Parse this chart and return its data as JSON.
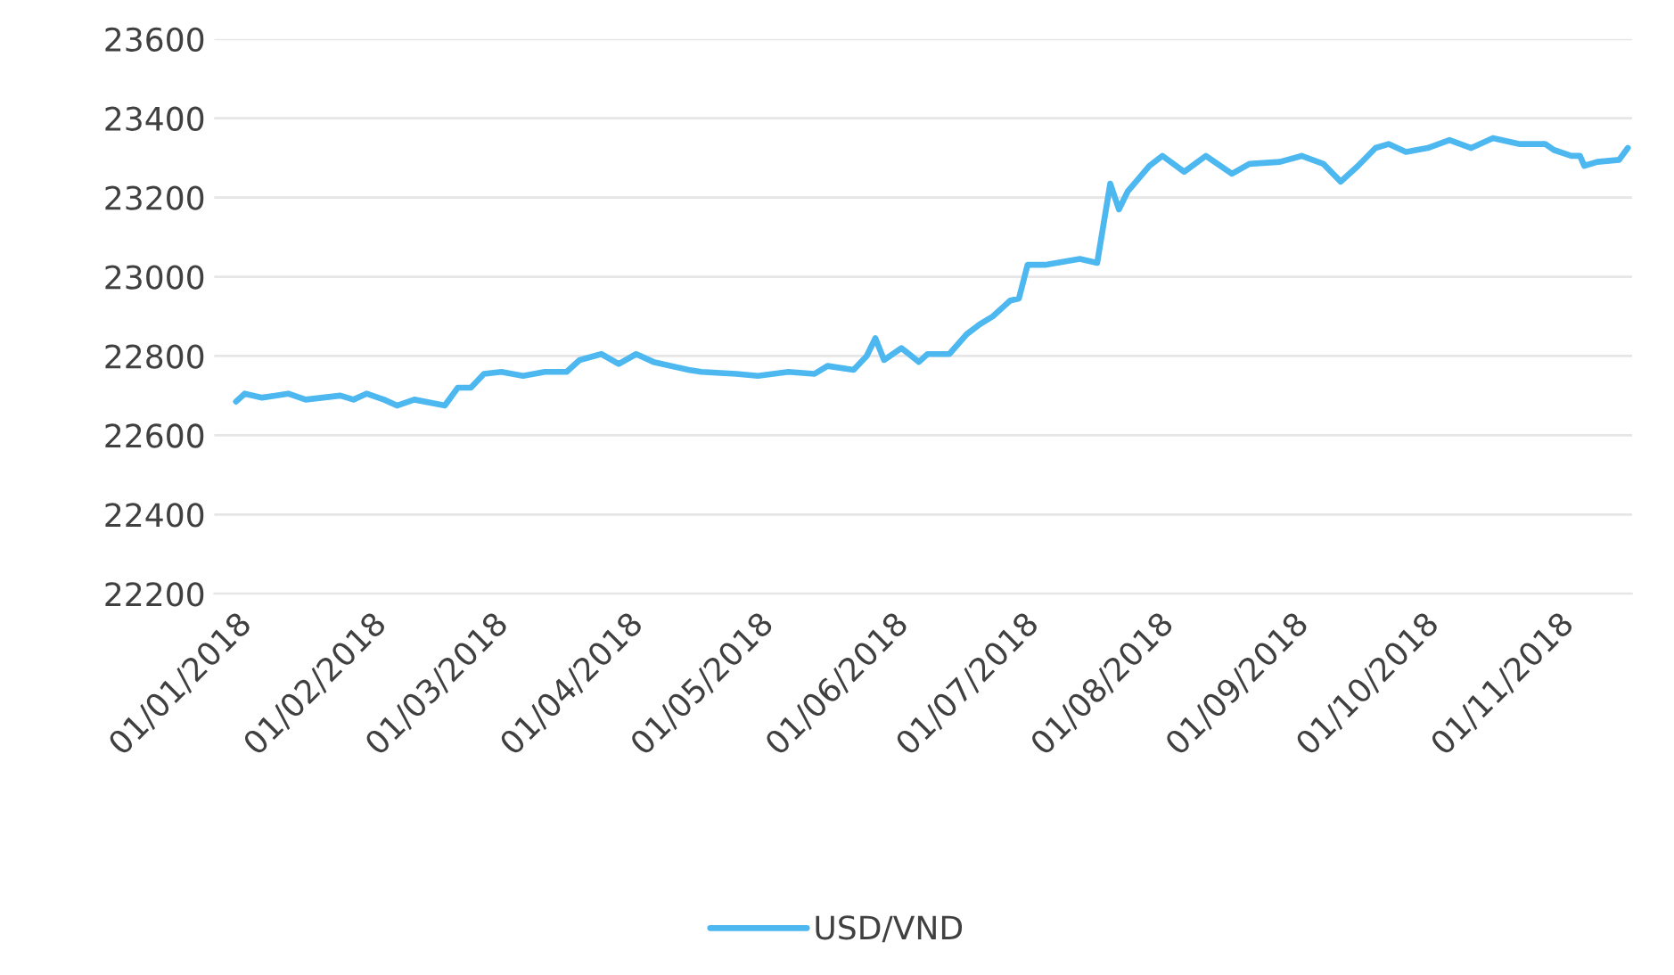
{
  "chart_data": {
    "type": "line",
    "x": [
      "2018-01-01",
      "2018-01-03",
      "2018-01-07",
      "2018-01-10",
      "2018-01-13",
      "2018-01-17",
      "2018-01-21",
      "2018-01-25",
      "2018-01-28",
      "2018-01-31",
      "2018-02-04",
      "2018-02-07",
      "2018-02-11",
      "2018-02-18",
      "2018-02-21",
      "2018-02-24",
      "2018-02-27",
      "2018-03-03",
      "2018-03-08",
      "2018-03-13",
      "2018-03-18",
      "2018-03-21",
      "2018-03-26",
      "2018-03-30",
      "2018-04-03",
      "2018-04-07",
      "2018-04-15",
      "2018-04-18",
      "2018-04-26",
      "2018-05-01",
      "2018-05-08",
      "2018-05-14",
      "2018-05-17",
      "2018-05-23",
      "2018-05-26",
      "2018-05-28",
      "2018-05-30",
      "2018-06-03",
      "2018-06-07",
      "2018-06-09",
      "2018-06-14",
      "2018-06-18",
      "2018-06-21",
      "2018-06-24",
      "2018-06-26",
      "2018-06-28",
      "2018-06-30",
      "2018-07-02",
      "2018-07-06",
      "2018-07-14",
      "2018-07-18",
      "2018-07-21",
      "2018-07-23",
      "2018-07-25",
      "2018-07-30",
      "2018-08-02",
      "2018-08-07",
      "2018-08-12",
      "2018-08-18",
      "2018-08-22",
      "2018-08-29",
      "2018-09-03",
      "2018-09-08",
      "2018-09-12",
      "2018-09-16",
      "2018-09-20",
      "2018-09-23",
      "2018-09-27",
      "2018-10-02",
      "2018-10-07",
      "2018-10-12",
      "2018-10-17",
      "2018-10-23",
      "2018-10-29",
      "2018-10-31",
      "2018-11-04",
      "2018-11-06",
      "2018-11-07",
      "2018-11-10",
      "2018-11-15",
      "2018-11-17"
    ],
    "series": [
      {
        "name": "USD/VND",
        "color": "#4db8f0",
        "values": [
          22685,
          22705,
          22695,
          22700,
          22705,
          22690,
          22695,
          22700,
          22690,
          22705,
          22690,
          22675,
          22690,
          22675,
          22720,
          22720,
          22755,
          22760,
          22750,
          22760,
          22760,
          22790,
          22805,
          22780,
          22805,
          22785,
          22765,
          22760,
          22755,
          22750,
          22760,
          22755,
          22775,
          22765,
          22800,
          22845,
          22790,
          22820,
          22785,
          22805,
          22805,
          22855,
          22880,
          22900,
          22920,
          22940,
          22945,
          23030,
          23030,
          23045,
          23035,
          23235,
          23170,
          23215,
          23280,
          23305,
          23265,
          23305,
          23260,
          23285,
          23290,
          23305,
          23285,
          23240,
          23280,
          23325,
          23335,
          23315,
          23325,
          23345,
          23325,
          23350,
          23335,
          23335,
          23320,
          23305,
          23305,
          23280,
          23290,
          23295,
          23325
        ]
      }
    ],
    "xlim": [
      "2017-12-27",
      "2018-11-18"
    ],
    "xticks": [
      {
        "value": "2018-01-01",
        "label": "01/01/2018"
      },
      {
        "value": "2018-02-01",
        "label": "01/02/2018"
      },
      {
        "value": "2018-03-01",
        "label": "01/03/2018"
      },
      {
        "value": "2018-04-01",
        "label": "01/04/2018"
      },
      {
        "value": "2018-05-01",
        "label": "01/05/2018"
      },
      {
        "value": "2018-06-01",
        "label": "01/06/2018"
      },
      {
        "value": "2018-07-01",
        "label": "01/07/2018"
      },
      {
        "value": "2018-08-01",
        "label": "01/08/2018"
      },
      {
        "value": "2018-09-01",
        "label": "01/09/2018"
      },
      {
        "value": "2018-10-01",
        "label": "01/10/2018"
      },
      {
        "value": "2018-11-01",
        "label": "01/11/2018"
      }
    ],
    "ylim": [
      22200,
      23600
    ],
    "yticks": [
      22200,
      22400,
      22600,
      22800,
      23000,
      23200,
      23400,
      23600
    ],
    "grid": "y",
    "legend": "bottom",
    "marker": "none",
    "line_style": "solid"
  }
}
